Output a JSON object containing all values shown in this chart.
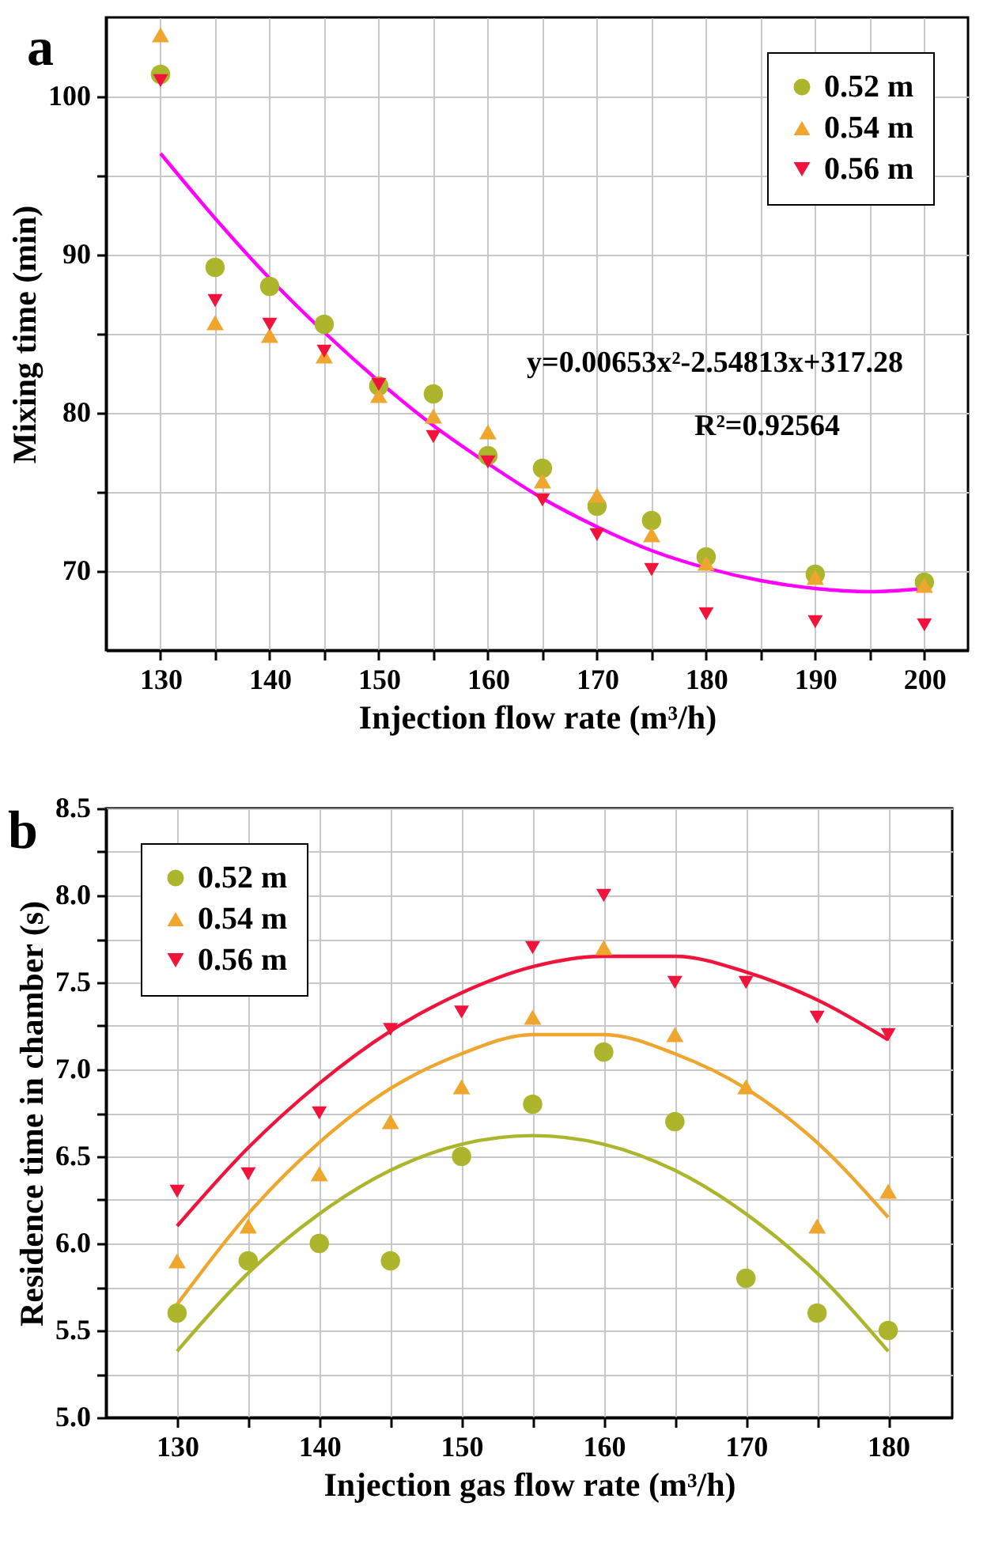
{
  "chart_data": [
    {
      "type": "scatter",
      "xlabel": "Injection flow rate (m³/h)",
      "ylabel": "Mixing time (min)",
      "annotations": [
        "a",
        "y=0.00653x²-2.54813x+317.28",
        "R²=0.92564"
      ],
      "xlim": [
        125,
        204
      ],
      "ylim": [
        65,
        105
      ],
      "xticks": [
        130,
        {
          "value": 135,
          "label": null
        },
        140,
        {
          "value": 145,
          "label": null
        },
        150,
        {
          "value": 155,
          "label": null
        },
        160,
        {
          "value": 165,
          "label": null
        },
        170,
        {
          "value": 175,
          "label": null
        },
        180,
        {
          "value": 185,
          "label": null
        },
        190,
        {
          "value": 195,
          "label": null
        },
        200
      ],
      "yticks": [
        70,
        {
          "value": 75,
          "label": null
        },
        80,
        {
          "value": 85,
          "label": null
        },
        90,
        {
          "value": 95,
          "label": null
        },
        100
      ],
      "grid": true,
      "legend": "top right",
      "x": [
        130,
        135,
        140,
        145,
        150,
        155,
        160,
        165,
        170,
        175,
        180,
        190,
        200
      ],
      "series": [
        {
          "name": "0.52 m",
          "color": "#acb52c",
          "marker": "circle",
          "values": [
            101.4,
            89.2,
            88.0,
            85.6,
            81.7,
            81.2,
            77.3,
            76.5,
            74.1,
            73.2,
            70.9,
            69.8,
            69.3
          ]
        },
        {
          "name": "0.54 m",
          "color": "#eea62e",
          "marker": "triangle",
          "values": [
            103.9,
            85.7,
            84.9,
            83.6,
            81.1,
            79.8,
            78.8,
            75.7,
            74.8,
            72.3,
            70.5,
            69.6,
            69.1
          ]
        },
        {
          "name": "0.56 m",
          "color": "#f0143c",
          "marker": "triangle-down",
          "values": [
            101.0,
            87.1,
            85.6,
            83.9,
            81.8,
            78.5,
            76.9,
            74.5,
            72.3,
            70.1,
            67.3,
            66.8,
            66.6
          ]
        },
        {
          "type": "line",
          "color": "#ff00ff",
          "marker": "none",
          "x": [
            130,
            135,
            140,
            145,
            150,
            155,
            160,
            165,
            170,
            175,
            180,
            185,
            190,
            195,
            200
          ],
          "values": [
            96.4,
            92.3,
            88.5,
            85.1,
            82.0,
            79.2,
            76.8,
            74.6,
            72.8,
            71.3,
            70.2,
            69.4,
            68.9,
            68.7,
            68.9
          ]
        }
      ]
    },
    {
      "type": "scatter",
      "xlabel": "Injection gas flow rate (m³/h)",
      "ylabel": "Residence time in chamber (s)",
      "annotations": [
        "b"
      ],
      "xlim": [
        125,
        184.5
      ],
      "ylim": [
        5,
        8.5
      ],
      "xticks": [
        130,
        {
          "value": 135,
          "label": null
        },
        140,
        {
          "value": 145,
          "label": null
        },
        150,
        {
          "value": 155,
          "label": null
        },
        160,
        {
          "value": 165,
          "label": null
        },
        170,
        {
          "value": 175,
          "label": null
        },
        180
      ],
      "yticks": [
        {
          "value": 5,
          "label": "5.0"
        },
        {
          "value": 5.25,
          "label": null
        },
        {
          "value": 5.5,
          "label": "5.5"
        },
        {
          "value": 5.75,
          "label": null
        },
        {
          "value": 6,
          "label": "6.0"
        },
        {
          "value": 6.25,
          "label": null
        },
        {
          "value": 6.5,
          "label": "6.5"
        },
        {
          "value": 6.75,
          "label": null
        },
        {
          "value": 7,
          "label": "7.0"
        },
        {
          "value": 7.25,
          "label": null
        },
        {
          "value": 7.5,
          "label": "7.5"
        },
        {
          "value": 7.75,
          "label": null
        },
        {
          "value": 8,
          "label": "8.0"
        },
        {
          "value": 8.25,
          "label": null
        },
        {
          "value": 8.5,
          "label": "8.5"
        }
      ],
      "grid": true,
      "legend": "top left",
      "x": [
        130,
        135,
        140,
        145,
        150,
        155,
        160,
        165,
        170,
        175,
        180
      ],
      "series": [
        {
          "name": "0.52 m",
          "color": "#acb52c",
          "marker": "circle",
          "values": [
            5.6,
            5.9,
            6.0,
            5.9,
            6.5,
            6.8,
            7.1,
            6.7,
            5.8,
            5.6,
            5.5
          ]
        },
        {
          "name": "0.54 m",
          "color": "#eea62e",
          "marker": "triangle",
          "values": [
            5.9,
            6.1,
            6.4,
            6.7,
            6.9,
            7.3,
            7.7,
            7.2,
            6.9,
            6.1,
            6.3
          ]
        },
        {
          "name": "0.56 m",
          "color": "#f0143c",
          "marker": "triangle-down",
          "values": [
            6.3,
            6.4,
            6.75,
            7.23,
            7.33,
            7.7,
            8.0,
            7.5,
            7.5,
            7.3,
            7.2
          ]
        },
        {
          "type": "line",
          "color": "#acb52c",
          "marker": "none",
          "values": [
            5.38,
            5.83,
            6.17,
            6.42,
            6.57,
            6.62,
            6.57,
            6.42,
            6.17,
            5.83,
            5.38
          ]
        },
        {
          "type": "line",
          "color": "#eea62e",
          "marker": "none",
          "values": [
            5.65,
            6.17,
            6.58,
            6.89,
            7.09,
            7.2,
            7.2,
            7.09,
            6.89,
            6.58,
            6.15
          ]
        },
        {
          "type": "line",
          "color": "#f0143c",
          "marker": "none",
          "values": [
            6.1,
            6.55,
            6.92,
            7.22,
            7.44,
            7.59,
            7.65,
            7.65,
            7.56,
            7.4,
            7.17
          ]
        }
      ]
    }
  ]
}
